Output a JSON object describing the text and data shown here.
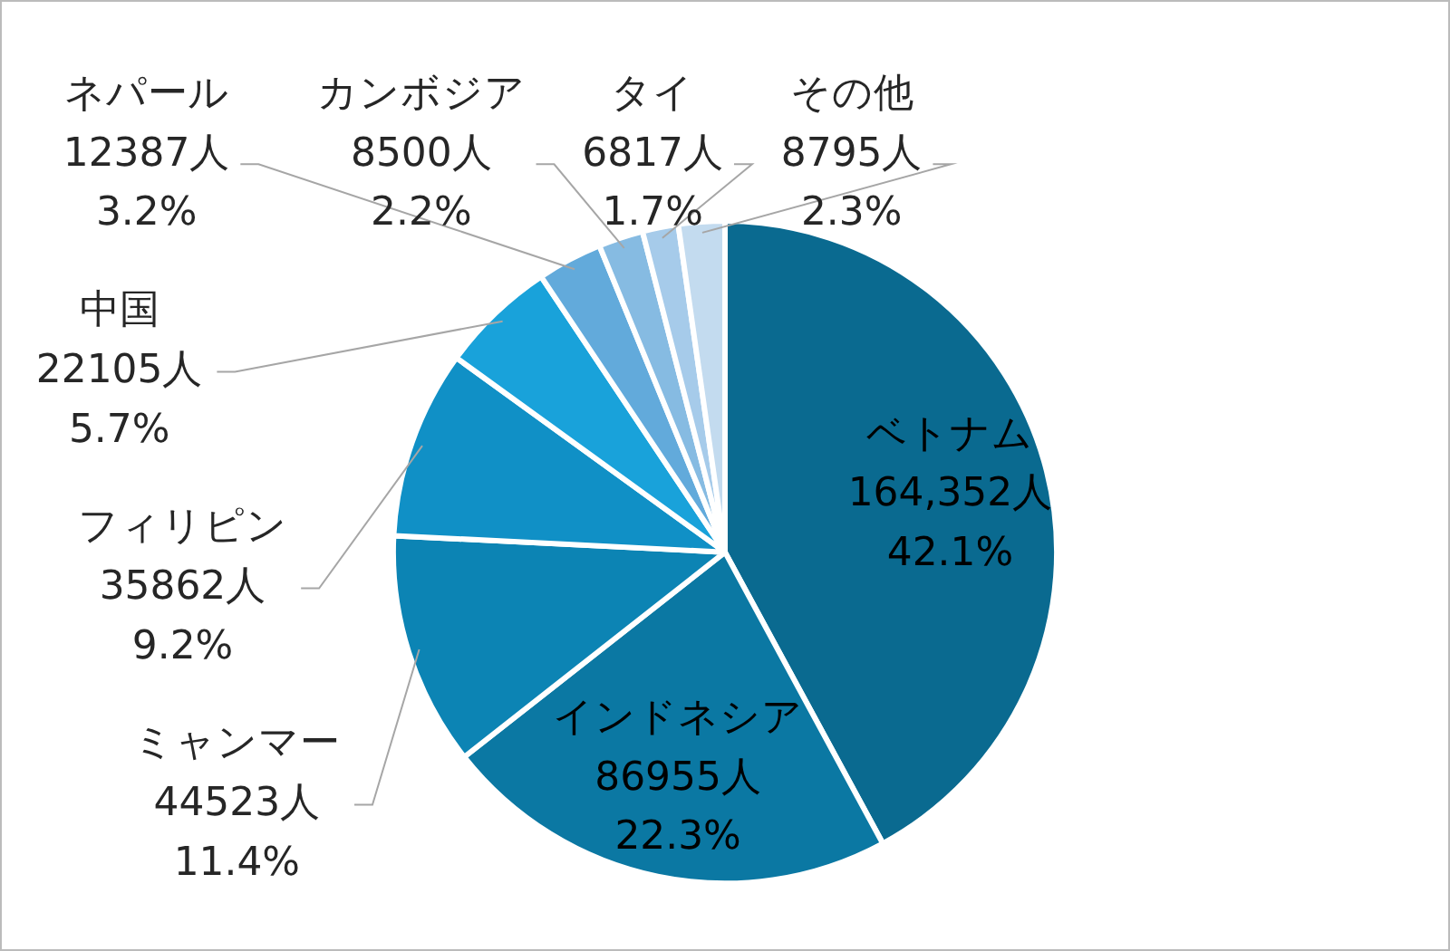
{
  "chart_data": {
    "type": "pie",
    "categories": [
      "ベトナム",
      "インドネシア",
      "ミャンマー",
      "フィリピン",
      "中国",
      "ネパール",
      "カンボジア",
      "タイ",
      "その他"
    ],
    "values": [
      164352,
      86955,
      44523,
      35862,
      22105,
      12387,
      8500,
      6817,
      8795
    ],
    "value_labels": [
      "164,352人\n42.1%",
      "86955人\n22.3%",
      "44523人\n11.4%",
      "35862人\n9.2%",
      "22105人\n5.7%",
      "12387人\n3.2%",
      "8500人\n2.2%",
      "6817人\n1.7%",
      "8795人\n2.3%"
    ],
    "colors": [
      "#0a6a90",
      "#0b78a3",
      "#0c84b4",
      "#1090c6",
      "#19a2da",
      "#62aadb",
      "#86bbe2",
      "#a6cbea",
      "#c3dbef"
    ],
    "legend": false
  }
}
